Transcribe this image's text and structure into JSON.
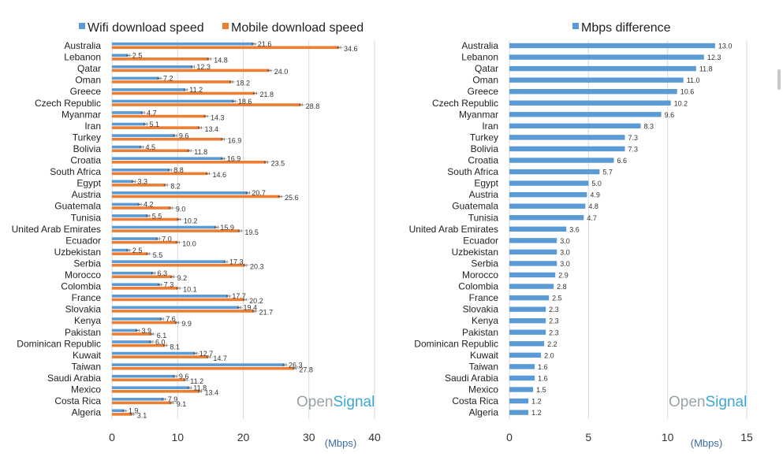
{
  "colors": {
    "wifi": "#5B9BD5",
    "mobile": "#ED7D31",
    "diff": "#5B9BD5",
    "grid": "#d9d9d9"
  },
  "chart_data": [
    {
      "type": "bar",
      "orientation": "horizontal",
      "title": "",
      "legend": [
        "Wifi download speed",
        "Mobile download speed"
      ],
      "xlabel": "(Mbps)",
      "xlim": [
        0,
        40
      ],
      "xticks": [
        "0",
        "10",
        "20",
        "30",
        "40"
      ],
      "brand": [
        "Open",
        "Signal"
      ],
      "categories": [
        "Australia",
        "Lebanon",
        "Qatar",
        "Oman",
        "Greece",
        "Czech Republic",
        "Myanmar",
        "Iran",
        "Turkey",
        "Bolivia",
        "Croatia",
        "South Africa",
        "Egypt",
        "Austria",
        "Guatemala",
        "Tunisia",
        "United Arab Emirates",
        "Ecuador",
        "Uzbekistan",
        "Serbia",
        "Morocco",
        "Colombia",
        "France",
        "Slovakia",
        "Kenya",
        "Pakistan",
        "Dominican Republic",
        "Kuwait",
        "Taiwan",
        "Saudi Arabia",
        "Mexico",
        "Costa Rica",
        "Algeria"
      ],
      "series": [
        {
          "name": "Wifi download speed",
          "values": [
            21.6,
            2.5,
            12.3,
            7.2,
            11.2,
            18.6,
            4.7,
            5.1,
            9.6,
            4.5,
            16.9,
            8.8,
            3.3,
            20.7,
            4.2,
            5.5,
            15.9,
            7.0,
            2.5,
            17.3,
            6.3,
            7.3,
            17.7,
            19.4,
            7.6,
            3.9,
            6.0,
            12.7,
            26.3,
            9.6,
            11.8,
            7.9,
            1.9
          ],
          "labels": [
            "21.6",
            "2.5",
            "12.3",
            "7.2",
            "11.2",
            "18.6",
            "4.7",
            "5.1",
            "9.6",
            "4.5",
            "16.9",
            "8.8",
            "3.3",
            "20.7",
            "4.2",
            "5.5",
            "15.9",
            "7.0",
            "2.5",
            "17.3",
            "6.3",
            "7.3",
            "17.7",
            "19.4",
            "7.6",
            "3.9",
            "6.0",
            "12.7",
            "26.3",
            "9.6",
            "11.8",
            "7.9",
            "1.9"
          ]
        },
        {
          "name": "Mobile download speed",
          "values": [
            34.6,
            14.8,
            24.0,
            18.2,
            21.8,
            28.8,
            14.3,
            13.4,
            16.9,
            11.8,
            23.5,
            14.6,
            8.2,
            25.6,
            9.0,
            10.2,
            19.5,
            10.0,
            5.5,
            20.3,
            9.2,
            10.1,
            20.2,
            21.7,
            9.9,
            6.1,
            8.1,
            14.7,
            27.8,
            11.2,
            13.4,
            9.1,
            3.1
          ],
          "labels": [
            "34.6",
            "14.8",
            "24.0",
            "18.2",
            "21.8",
            "28.8",
            "14.3",
            "13.4",
            "16.9",
            "11.8",
            "23.5",
            "14.6",
            "8.2",
            "25.6",
            "9.0",
            "10.2",
            "19.5",
            "10.0",
            "5.5",
            "20.3",
            "9.2",
            "10.1",
            "20.2",
            "21.7",
            "9.9",
            "6.1",
            "8.1",
            "14.7",
            "27.8",
            "11.2",
            "13.4",
            "9.1",
            "3.1"
          ]
        }
      ]
    },
    {
      "type": "bar",
      "orientation": "horizontal",
      "title": "",
      "legend": [
        "Mbps difference"
      ],
      "xlabel": "(Mbps)",
      "xlim": [
        0,
        15
      ],
      "xticks": [
        "0",
        "5",
        "10",
        "15"
      ],
      "brand": [
        "Open",
        "Signal"
      ],
      "categories": [
        "Australia",
        "Lebanon",
        "Qatar",
        "Oman",
        "Greece",
        "Czech Republic",
        "Myanmar",
        "Iran",
        "Turkey",
        "Bolivia",
        "Croatia",
        "South Africa",
        "Egypt",
        "Austria",
        "Guatemala",
        "Tunisia",
        "United Arab Emirates",
        "Ecuador",
        "Uzbekistan",
        "Serbia",
        "Morocco",
        "Colombia",
        "France",
        "Slovakia",
        "Kenya",
        "Pakistan",
        "Dominican Republic",
        "Kuwait",
        "Taiwan",
        "Saudi Arabia",
        "Mexico",
        "Costa Rica",
        "Algeria"
      ],
      "series": [
        {
          "name": "Mbps difference",
          "values": [
            13.0,
            12.3,
            11.8,
            11.0,
            10.6,
            10.2,
            9.6,
            8.3,
            7.3,
            7.3,
            6.6,
            5.7,
            5.0,
            4.9,
            4.8,
            4.7,
            3.6,
            3.0,
            3.0,
            3.0,
            2.9,
            2.8,
            2.5,
            2.3,
            2.3,
            2.3,
            2.2,
            2.0,
            1.6,
            1.6,
            1.5,
            1.2,
            1.2
          ],
          "labels": [
            "13.0",
            "12.3",
            "11.8",
            "11.0",
            "10.6",
            "10.2",
            "9.6",
            "8.3",
            "7.3",
            "7.3",
            "6.6",
            "5.7",
            "5.0",
            "4.9",
            "4.8",
            "4.7",
            "3.6",
            "3.0",
            "3.0",
            "3.0",
            "2.9",
            "2.8",
            "2.5",
            "2.3",
            "2.3",
            "2.3",
            "2.2",
            "2.0",
            "1.6",
            "1.6",
            "1.5",
            "1.2",
            "1.2"
          ]
        }
      ]
    }
  ]
}
